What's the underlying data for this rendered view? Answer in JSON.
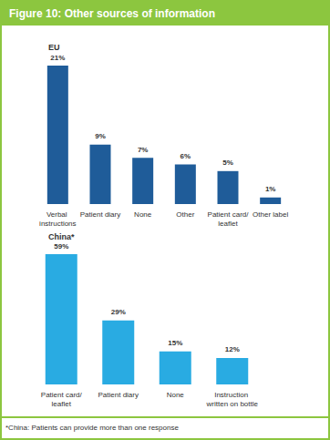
{
  "title": "Figure 10: Other sources of information",
  "note": "*China: Patients can provide more than one response",
  "chart_data": [
    {
      "type": "bar",
      "title": "EU",
      "categories": [
        "Verbal instructions",
        "Patient diary",
        "None",
        "Other",
        "Patient card/leaflet",
        "Other label"
      ],
      "values": [
        21,
        9,
        7,
        6,
        5,
        1
      ],
      "value_labels": [
        "21%",
        "9%",
        "7%",
        "6%",
        "5%",
        "1%"
      ],
      "color": "#1f5c99",
      "ylim": [
        0,
        21
      ],
      "grid": false,
      "tick_labels": "x",
      "data_labels": true
    },
    {
      "type": "bar",
      "title": "China*",
      "categories": [
        "Patient card/leaflet",
        "Patient diary",
        "None",
        "Instruction written on bottle"
      ],
      "values": [
        59,
        29,
        15,
        12
      ],
      "value_labels": [
        "59%",
        "29%",
        "15%",
        "12%"
      ],
      "color": "#29abe2",
      "ylim": [
        0,
        59
      ],
      "grid": false,
      "tick_labels": "x",
      "data_labels": true
    }
  ]
}
